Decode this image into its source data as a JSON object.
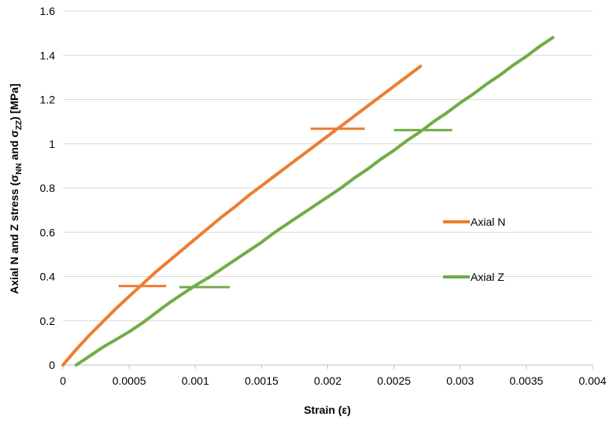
{
  "chart_data": {
    "type": "line",
    "title": "",
    "xlabel": "Strain (ε)",
    "ylabel": {
      "prefix": "Axial N and Z stress (σ",
      "sub1": "NN",
      "mid": " and σ",
      "sub2": "ZZ",
      "suffix": ") [MPa]"
    },
    "xlim": [
      0,
      0.004
    ],
    "ylim": [
      0,
      1.6
    ],
    "x_ticks": [
      "0",
      "0.0005",
      "0.001",
      "0.0015",
      "0.002",
      "0.0025",
      "0.003",
      "0.0035",
      "0.004"
    ],
    "x_tick_values": [
      0,
      0.0005,
      0.001,
      0.0015,
      0.002,
      0.0025,
      0.003,
      0.0035,
      0.004
    ],
    "y_ticks": [
      "0",
      "0.2",
      "0.4",
      "0.6",
      "0.8",
      "1",
      "1.2",
      "1.4",
      "1.6"
    ],
    "y_tick_values": [
      0,
      0.2,
      0.4,
      0.6,
      0.8,
      1.0,
      1.2,
      1.4,
      1.6
    ],
    "grid": "horizontal",
    "legend_position": "right",
    "series": [
      {
        "name": "Axial N",
        "color": "#ED7D31",
        "x": [
          0,
          0.0001,
          0.0002,
          0.0003,
          0.0004,
          0.0005,
          0.0006,
          0.0007,
          0.0008,
          0.0009,
          0.001,
          0.0011,
          0.0012,
          0.0013,
          0.0014,
          0.0015,
          0.0016,
          0.0017,
          0.0018,
          0.0019,
          0.002,
          0.0021,
          0.0022,
          0.0023,
          0.0024,
          0.0025,
          0.0026,
          0.0027
        ],
        "y": [
          0,
          0.07,
          0.135,
          0.195,
          0.255,
          0.31,
          0.365,
          0.42,
          0.47,
          0.52,
          0.57,
          0.62,
          0.67,
          0.715,
          0.765,
          0.81,
          0.855,
          0.9,
          0.945,
          0.99,
          1.035,
          1.08,
          1.125,
          1.17,
          1.215,
          1.26,
          1.305,
          1.35
        ]
      },
      {
        "name": "Axial Z",
        "color": "#70AD47",
        "x": [
          0.0001,
          0.0002,
          0.0003,
          0.0004,
          0.0005,
          0.0006,
          0.0007,
          0.0008,
          0.0009,
          0.001,
          0.0011,
          0.0012,
          0.0013,
          0.0014,
          0.0015,
          0.0016,
          0.0017,
          0.0018,
          0.0019,
          0.002,
          0.0021,
          0.0022,
          0.0023,
          0.0024,
          0.0025,
          0.0026,
          0.0027,
          0.0028,
          0.0029,
          0.003,
          0.0031,
          0.0032,
          0.0033,
          0.0034,
          0.0035,
          0.0036,
          0.0037
        ],
        "y": [
          0,
          0.04,
          0.08,
          0.115,
          0.15,
          0.19,
          0.235,
          0.28,
          0.32,
          0.36,
          0.395,
          0.435,
          0.475,
          0.515,
          0.555,
          0.6,
          0.64,
          0.68,
          0.72,
          0.76,
          0.8,
          0.845,
          0.885,
          0.93,
          0.97,
          1.015,
          1.055,
          1.1,
          1.14,
          1.185,
          1.225,
          1.27,
          1.31,
          1.355,
          1.395,
          1.44,
          1.48
        ]
      }
    ],
    "segments": [
      {
        "series": "Axial N",
        "x": [
          0.00042,
          0.00078
        ],
        "y": 0.357
      },
      {
        "series": "Axial N",
        "x": [
          0.00187,
          0.00228
        ],
        "y": 1.068
      },
      {
        "series": "Axial Z",
        "x": [
          0.00088,
          0.00126
        ],
        "y": 0.352
      },
      {
        "series": "Axial Z",
        "x": [
          0.0025,
          0.00294
        ],
        "y": 1.062
      }
    ]
  }
}
